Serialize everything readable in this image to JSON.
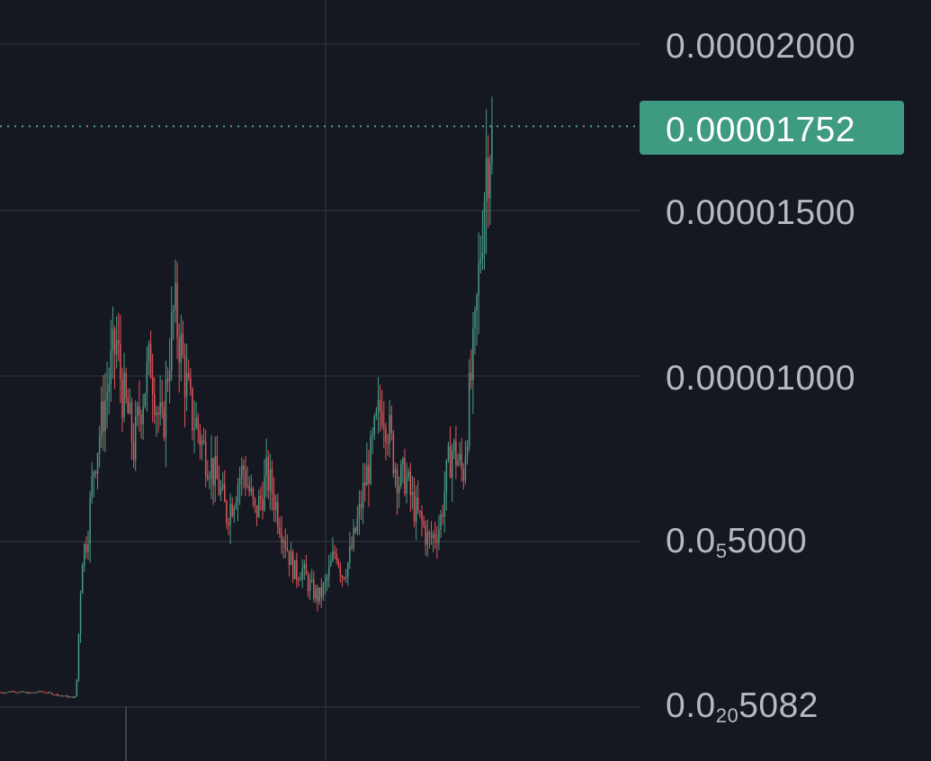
{
  "chart_data": {
    "type": "candlestick",
    "y_scale": "linear",
    "y_ticks": [
      {
        "value": 2e-05,
        "label": "0.00002000"
      },
      {
        "value": 1.5e-05,
        "label": "0.00001500"
      },
      {
        "value": 1e-05,
        "label": "0.00001000"
      },
      {
        "value": 5e-06,
        "label_prefix": "0.0",
        "label_sub": "5",
        "label_suffix": "5000"
      },
      {
        "value": 0.0,
        "label_prefix": "0.0",
        "label_sub": "20",
        "label_suffix": "5082"
      }
    ],
    "ylim": [
      -3e-07,
      2.26e-05
    ],
    "last_price": {
      "value": 1.752e-05,
      "label": "0.00001752"
    },
    "grid": true,
    "colors": {
      "background": "#161821",
      "grid": "#2a2d39",
      "up": "#4a9a84",
      "down": "#e25559",
      "axis_text": "#b6b9c3",
      "last_price_bg": "#3f9a82",
      "last_price_line": "#4aa58c"
    },
    "price_path": [
      4.5e-07,
      4.5e-07,
      4.8e-07,
      4.6e-07,
      4.4e-07,
      4.2e-07,
      4.5e-07,
      4.7e-07,
      4.3e-07,
      4e-07,
      3.6e-07,
      3.3e-07,
      3e-07,
      3e-07,
      4.5e-06,
      5.2e-06,
      7.2e-06,
      8.2e-06,
      9.2e-06,
      1.02e-05,
      1.1e-05,
      9.5e-06,
      8.8e-06,
      7.8e-06,
      9e-06,
      9.8e-06,
      1.05e-05,
      9e-06,
      8.3e-06,
      1.05e-05,
      1.2e-05,
      1.1e-05,
      9.8e-06,
      8.8e-06,
      8.5e-06,
      7.8e-06,
      7.5e-06,
      7e-06,
      6.5e-06,
      5.8e-06,
      6.2e-06,
      6.8e-06,
      7.2e-06,
      6.5e-06,
      5.8e-06,
      6.3e-06,
      7e-06,
      6.5e-06,
      5.8e-06,
      5.2e-06,
      4.5e-06,
      4e-06,
      4.2e-06,
      3.8e-06,
      3.5e-06,
      3.3e-06,
      3.6e-06,
      4.2e-06,
      4.8e-06,
      4e-06,
      4.3e-06,
      5e-06,
      5.8e-06,
      6.8e-06,
      7.5e-06,
      8.5e-06,
      9.2e-06,
      8.5e-06,
      7.5e-06,
      6.8e-06,
      7e-06,
      6.3e-06,
      5.8e-06,
      5.5e-06,
      5e-06,
      5.2e-06,
      5.5e-06,
      6.8e-06,
      7.8e-06,
      7.5e-06,
      7e-06,
      9.2e-06,
      1.1e-05,
      1.38e-05,
      1.65e-05,
      1.75e-05
    ]
  },
  "price_axis": {
    "tick_1": "0.00002000",
    "tick_2": "0.00001500",
    "tick_3": "0.00001000",
    "tick_4_prefix": "0.0",
    "tick_4_sub": "5",
    "tick_4_suffix": "5000",
    "tick_5_prefix": "0.0",
    "tick_5_sub": "20",
    "tick_5_suffix": "5082"
  },
  "last_price_label": "0.00001752"
}
